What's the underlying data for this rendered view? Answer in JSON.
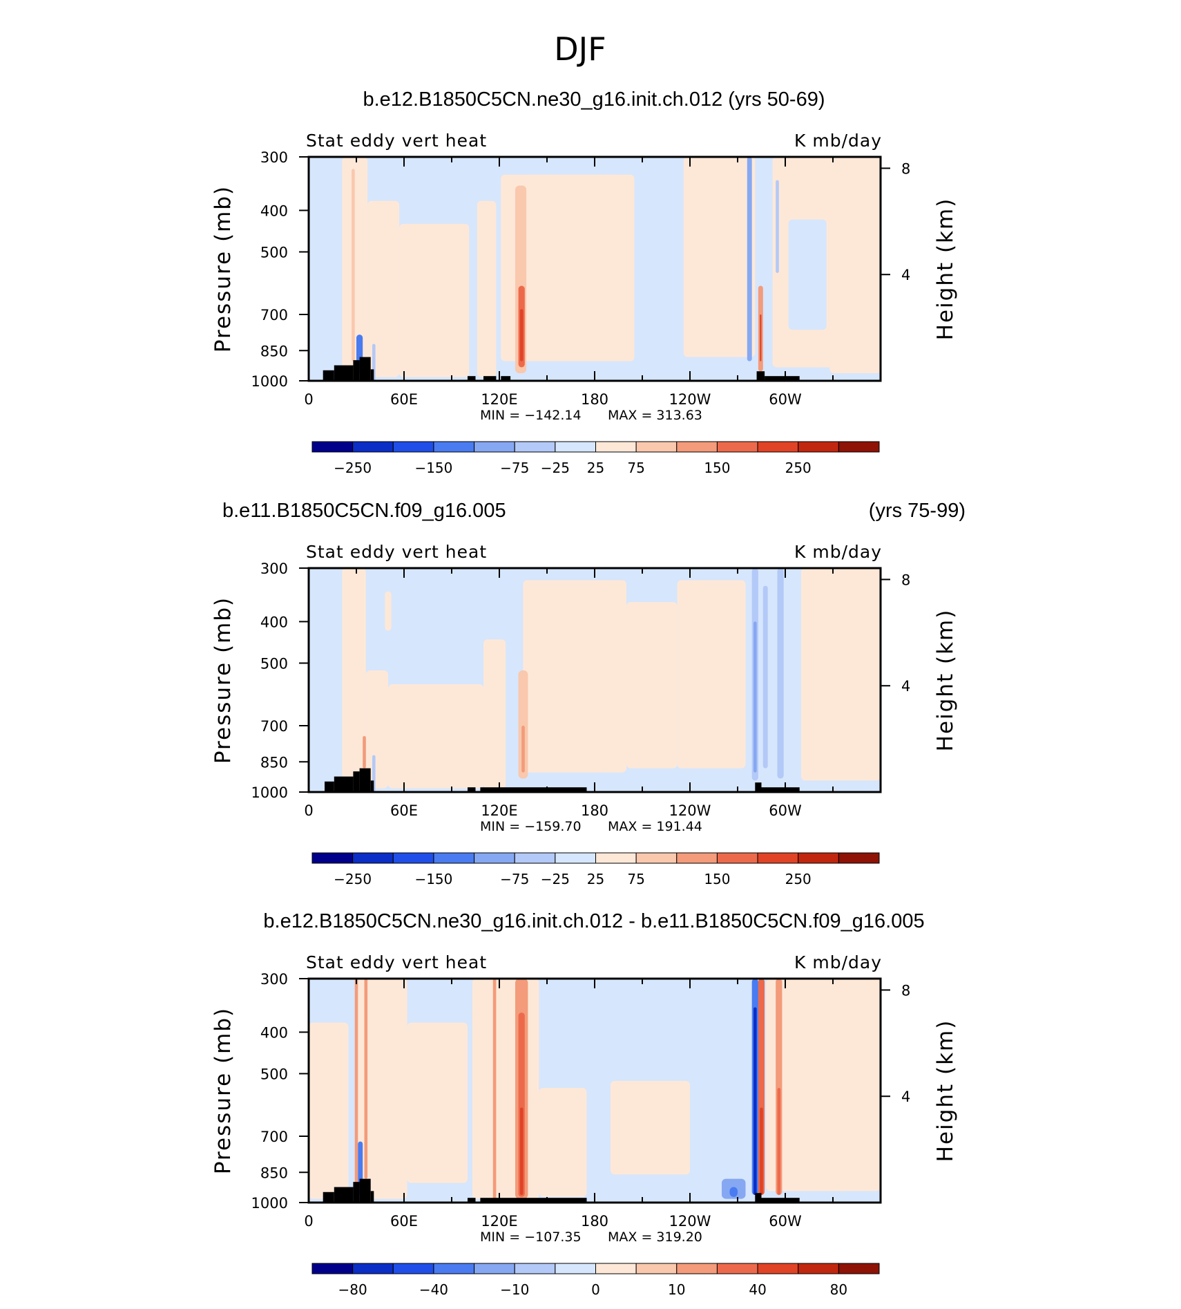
{
  "figure_title": "DJF",
  "colors": {
    "scale": [
      "#00008b",
      "#0b2ec7",
      "#1f4fe8",
      "#4a7bf0",
      "#86a8f2",
      "#b3c9f7",
      "#d6e6fc",
      "#fde8d8",
      "#f9c8ad",
      "#f39b7a",
      "#ec6a4b",
      "#e04326",
      "#c1270f",
      "#8e1206"
    ],
    "land": "#000000"
  },
  "chart_data": [
    {
      "type": "heatmap",
      "title": "b.e12.B1850C5CN.ne30_g16.init.ch.012 (yrs 50-69)",
      "title_right": "",
      "left_label": "Stat  eddy  vert  heat",
      "right_label": "K  mb/day",
      "ylabel": "Pressure  (mb)",
      "ylabel_right": "Height  (km)",
      "y_ticks": [
        "300",
        "400",
        "500",
        "700",
        "850",
        "1000"
      ],
      "y_values": [
        300,
        400,
        500,
        700,
        850,
        1000
      ],
      "height_ticks": [
        "8",
        "4"
      ],
      "height_values": [
        8,
        4
      ],
      "x_ticks": [
        "0",
        "60E",
        "120E",
        "180",
        "120W",
        "60W"
      ],
      "x_values": [
        0,
        60,
        120,
        180,
        240,
        300
      ],
      "xlim": [
        0,
        360
      ],
      "ylim": [
        1000,
        300
      ],
      "min_label": "MIN  =  −142.14",
      "max_label": "MAX  =  313.63",
      "colorbar_labels": [
        "−250",
        "−150",
        "−75",
        "−25",
        "25",
        "75",
        "150",
        "250"
      ],
      "colorbar_levels": [
        -250,
        -150,
        -75,
        -25,
        25,
        75,
        150,
        250
      ],
      "features": [
        {
          "lon": [
            0,
            360
          ],
          "p": [
            300,
            1000
          ],
          "level": 6
        },
        {
          "lon": [
            21,
            37
          ],
          "p": [
            300,
            980
          ],
          "level": 7
        },
        {
          "lon": [
            37,
            57
          ],
          "p": [
            380,
            980
          ],
          "level": 7
        },
        {
          "lon": [
            57,
            101
          ],
          "p": [
            430,
            980
          ],
          "level": 7
        },
        {
          "lon": [
            106,
            118
          ],
          "p": [
            380,
            980
          ],
          "level": 7
        },
        {
          "lon": [
            121,
            205
          ],
          "p": [
            330,
            900
          ],
          "level": 7
        },
        {
          "lon": [
            236,
            281
          ],
          "p": [
            300,
            880
          ],
          "level": 7
        },
        {
          "lon": [
            292,
            360
          ],
          "p": [
            300,
            930
          ],
          "level": 7
        },
        {
          "lon": [
            302,
            326
          ],
          "p": [
            420,
            760
          ],
          "level": 6
        },
        {
          "lon": [
            328,
            360
          ],
          "p": [
            300,
            960
          ],
          "level": 7
        },
        {
          "lon": [
            27,
            29
          ],
          "p": [
            320,
            900
          ],
          "level": 8
        },
        {
          "lon": [
            130,
            137
          ],
          "p": [
            350,
            960
          ],
          "level": 8
        },
        {
          "lon": [
            132,
            136
          ],
          "p": [
            600,
            930
          ],
          "level": 10
        },
        {
          "lon": [
            133,
            135
          ],
          "p": [
            680,
            900
          ],
          "level": 11
        },
        {
          "lon": [
            283,
            286
          ],
          "p": [
            600,
            950
          ],
          "level": 9
        },
        {
          "lon": [
            284,
            285
          ],
          "p": [
            700,
            900
          ],
          "level": 11
        },
        {
          "lon": [
            276,
            279
          ],
          "p": [
            300,
            900
          ],
          "level": 4
        },
        {
          "lon": [
            294,
            296
          ],
          "p": [
            340,
            560
          ],
          "level": 5
        },
        {
          "lon": [
            30,
            34
          ],
          "p": [
            780,
            960
          ],
          "level": 3
        },
        {
          "lon": [
            40,
            42
          ],
          "p": [
            820,
            1000
          ],
          "level": 5
        }
      ],
      "land": [
        {
          "lon": [
            9,
            16
          ],
          "p": [
            945,
            1000
          ]
        },
        {
          "lon": [
            16,
            28
          ],
          "p": [
            920,
            1000
          ]
        },
        {
          "lon": [
            28,
            32
          ],
          "p": [
            895,
            1000
          ]
        },
        {
          "lon": [
            32,
            39
          ],
          "p": [
            880,
            1000
          ]
        },
        {
          "lon": [
            39,
            41
          ],
          "p": [
            940,
            1000
          ]
        },
        {
          "lon": [
            100,
            105
          ],
          "p": [
            975,
            1000
          ]
        },
        {
          "lon": [
            110,
            118
          ],
          "p": [
            975,
            1000
          ]
        },
        {
          "lon": [
            121,
            127
          ],
          "p": [
            975,
            1000
          ]
        },
        {
          "lon": [
            282,
            287
          ],
          "p": [
            950,
            1000
          ]
        },
        {
          "lon": [
            287,
            309
          ],
          "p": [
            975,
            1000
          ]
        }
      ]
    },
    {
      "type": "heatmap",
      "title": "b.e11.B1850C5CN.f09_g16.005",
      "title_right": "(yrs 75-99)",
      "left_label": "Stat  eddy  vert  heat",
      "right_label": "K  mb/day",
      "ylabel": "Pressure  (mb)",
      "ylabel_right": "Height  (km)",
      "y_ticks": [
        "300",
        "400",
        "500",
        "700",
        "850",
        "1000"
      ],
      "y_values": [
        300,
        400,
        500,
        700,
        850,
        1000
      ],
      "height_ticks": [
        "8",
        "4"
      ],
      "height_values": [
        8,
        4
      ],
      "x_ticks": [
        "0",
        "60E",
        "120E",
        "180",
        "120W",
        "60W"
      ],
      "x_values": [
        0,
        60,
        120,
        180,
        240,
        300
      ],
      "xlim": [
        0,
        360
      ],
      "ylim": [
        1000,
        300
      ],
      "min_label": "MIN  =  −159.70",
      "max_label": "MAX  =  191.44",
      "colorbar_labels": [
        "−250",
        "−150",
        "−75",
        "−25",
        "25",
        "75",
        "150",
        "250"
      ],
      "colorbar_levels": [
        -250,
        -150,
        -75,
        -25,
        25,
        75,
        150,
        250
      ],
      "features": [
        {
          "lon": [
            0,
            360
          ],
          "p": [
            300,
            1000
          ],
          "level": 6
        },
        {
          "lon": [
            21,
            36
          ],
          "p": [
            300,
            980
          ],
          "level": 7
        },
        {
          "lon": [
            36,
            50
          ],
          "p": [
            520,
            980
          ],
          "level": 7
        },
        {
          "lon": [
            50,
            110
          ],
          "p": [
            560,
            980
          ],
          "level": 7
        },
        {
          "lon": [
            110,
            124
          ],
          "p": [
            440,
            980
          ],
          "level": 7
        },
        {
          "lon": [
            135,
            200
          ],
          "p": [
            320,
            900
          ],
          "level": 7
        },
        {
          "lon": [
            200,
            232
          ],
          "p": [
            360,
            880
          ],
          "level": 7
        },
        {
          "lon": [
            232,
            275
          ],
          "p": [
            320,
            880
          ],
          "level": 7
        },
        {
          "lon": [
            310,
            360
          ],
          "p": [
            300,
            940
          ],
          "level": 7
        },
        {
          "lon": [
            48,
            52
          ],
          "p": [
            340,
            420
          ],
          "level": 7
        },
        {
          "lon": [
            132,
            138
          ],
          "p": [
            520,
            930
          ],
          "level": 8
        },
        {
          "lon": [
            134,
            136
          ],
          "p": [
            700,
            900
          ],
          "level": 9
        },
        {
          "lon": [
            34,
            36
          ],
          "p": [
            740,
            880
          ],
          "level": 9
        },
        {
          "lon": [
            279,
            283
          ],
          "p": [
            300,
            940
          ],
          "level": 5
        },
        {
          "lon": [
            286,
            289
          ],
          "p": [
            330,
            880
          ],
          "level": 5
        },
        {
          "lon": [
            295,
            299
          ],
          "p": [
            300,
            930
          ],
          "level": 5
        },
        {
          "lon": [
            280,
            282
          ],
          "p": [
            400,
            900
          ],
          "level": 4
        },
        {
          "lon": [
            40,
            42
          ],
          "p": [
            820,
            1000
          ],
          "level": 5
        }
      ],
      "land": [
        {
          "lon": [
            10,
            16
          ],
          "p": [
            945,
            1000
          ]
        },
        {
          "lon": [
            16,
            28
          ],
          "p": [
            920,
            1000
          ]
        },
        {
          "lon": [
            28,
            32
          ],
          "p": [
            895,
            1000
          ]
        },
        {
          "lon": [
            32,
            39
          ],
          "p": [
            880,
            1000
          ]
        },
        {
          "lon": [
            39,
            41
          ],
          "p": [
            940,
            1000
          ]
        },
        {
          "lon": [
            100,
            105
          ],
          "p": [
            975,
            1000
          ]
        },
        {
          "lon": [
            108,
            175
          ],
          "p": [
            975,
            1000
          ]
        },
        {
          "lon": [
            281,
            285
          ],
          "p": [
            950,
            1000
          ]
        },
        {
          "lon": [
            285,
            309
          ],
          "p": [
            975,
            1000
          ]
        }
      ]
    },
    {
      "type": "heatmap",
      "title": "b.e12.B1850C5CN.ne30_g16.init.ch.012 - b.e11.B1850C5CN.f09_g16.005",
      "title_right": "",
      "left_label": "Stat  eddy  vert  heat",
      "right_label": "K  mb/day",
      "ylabel": "Pressure  (mb)",
      "ylabel_right": "Height  (km)",
      "y_ticks": [
        "300",
        "400",
        "500",
        "700",
        "850",
        "1000"
      ],
      "y_values": [
        300,
        400,
        500,
        700,
        850,
        1000
      ],
      "height_ticks": [
        "8",
        "4"
      ],
      "height_values": [
        8,
        4
      ],
      "x_ticks": [
        "0",
        "60E",
        "120E",
        "180",
        "120W",
        "60W"
      ],
      "x_values": [
        0,
        60,
        120,
        180,
        240,
        300
      ],
      "xlim": [
        0,
        360
      ],
      "ylim": [
        1000,
        300
      ],
      "min_label": "MIN  =  −107.35",
      "max_label": "MAX  =  319.20",
      "colorbar_labels": [
        "−80",
        "−40",
        "−10",
        "0",
        "10",
        "40",
        "80"
      ],
      "colorbar_levels": [
        -80,
        -40,
        -10,
        0,
        10,
        40,
        80
      ],
      "features": [
        {
          "lon": [
            0,
            360
          ],
          "p": [
            300,
            1000
          ],
          "level": 6
        },
        {
          "lon": [
            0,
            25
          ],
          "p": [
            380,
            980
          ],
          "level": 7
        },
        {
          "lon": [
            30,
            62
          ],
          "p": [
            300,
            980
          ],
          "level": 7
        },
        {
          "lon": [
            62,
            100
          ],
          "p": [
            380,
            900
          ],
          "level": 7
        },
        {
          "lon": [
            103,
            145
          ],
          "p": [
            300,
            980
          ],
          "level": 7
        },
        {
          "lon": [
            145,
            175
          ],
          "p": [
            540,
            970
          ],
          "level": 7
        },
        {
          "lon": [
            190,
            240
          ],
          "p": [
            520,
            860
          ],
          "level": 7
        },
        {
          "lon": [
            288,
            360
          ],
          "p": [
            300,
            940
          ],
          "level": 7
        },
        {
          "lon": [
            29,
            31
          ],
          "p": [
            300,
            900
          ],
          "level": 9
        },
        {
          "lon": [
            35,
            37
          ],
          "p": [
            300,
            880
          ],
          "level": 9
        },
        {
          "lon": [
            116,
            118
          ],
          "p": [
            300,
            1000
          ],
          "level": 9
        },
        {
          "lon": [
            130,
            138
          ],
          "p": [
            300,
            980
          ],
          "level": 9
        },
        {
          "lon": [
            132,
            136
          ],
          "p": [
            360,
            970
          ],
          "level": 10
        },
        {
          "lon": [
            133,
            135
          ],
          "p": [
            600,
            960
          ],
          "level": 11
        },
        {
          "lon": [
            283,
            287
          ],
          "p": [
            300,
            960
          ],
          "level": 10
        },
        {
          "lon": [
            284,
            286
          ],
          "p": [
            600,
            960
          ],
          "level": 11
        },
        {
          "lon": [
            294,
            298
          ],
          "p": [
            300,
            960
          ],
          "level": 9
        },
        {
          "lon": [
            295,
            297
          ],
          "p": [
            540,
            960
          ],
          "level": 10
        },
        {
          "lon": [
            279,
            283
          ],
          "p": [
            300,
            960
          ],
          "level": 3
        },
        {
          "lon": [
            280,
            282
          ],
          "p": [
            350,
            960
          ],
          "level": 1
        },
        {
          "lon": [
            31,
            34
          ],
          "p": [
            720,
            960
          ],
          "level": 3
        },
        {
          "lon": [
            260,
            275
          ],
          "p": [
            880,
            980
          ],
          "level": 4
        },
        {
          "lon": [
            265,
            270
          ],
          "p": [
            920,
            970
          ],
          "level": 3
        }
      ],
      "land": [
        {
          "lon": [
            9,
            16
          ],
          "p": [
            945,
            1000
          ]
        },
        {
          "lon": [
            16,
            28
          ],
          "p": [
            920,
            1000
          ]
        },
        {
          "lon": [
            28,
            32
          ],
          "p": [
            895,
            1000
          ]
        },
        {
          "lon": [
            32,
            39
          ],
          "p": [
            880,
            1000
          ]
        },
        {
          "lon": [
            39,
            41
          ],
          "p": [
            940,
            1000
          ]
        },
        {
          "lon": [
            100,
            105
          ],
          "p": [
            975,
            1000
          ]
        },
        {
          "lon": [
            108,
            175
          ],
          "p": [
            975,
            1000
          ]
        },
        {
          "lon": [
            281,
            285
          ],
          "p": [
            950,
            1000
          ]
        },
        {
          "lon": [
            285,
            309
          ],
          "p": [
            975,
            1000
          ]
        }
      ]
    }
  ]
}
